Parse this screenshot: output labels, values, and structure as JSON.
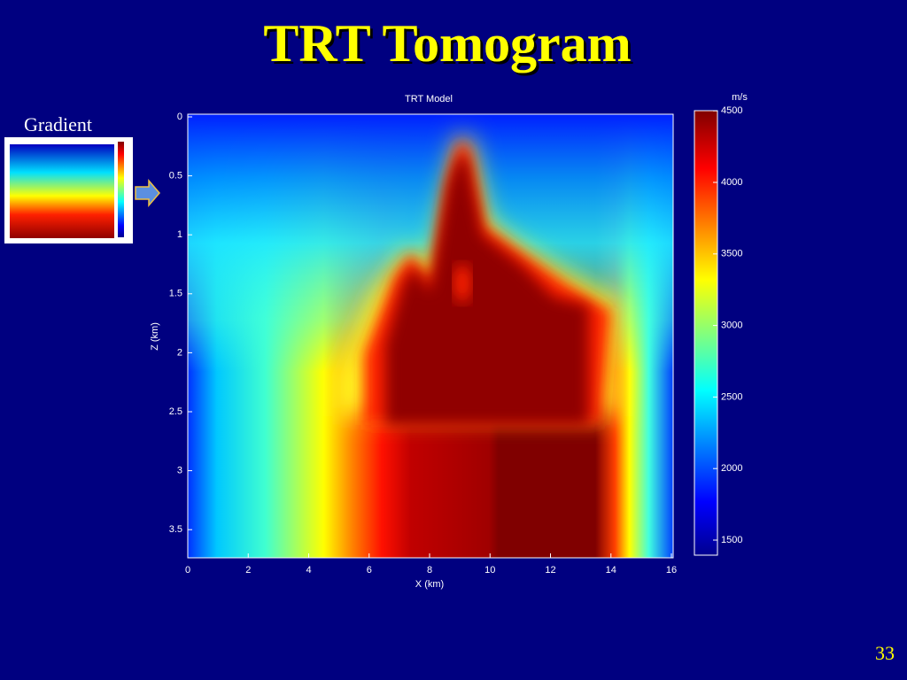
{
  "slide": {
    "title": "TRT Tomogram",
    "page_number": "33"
  },
  "thumbnail": {
    "label": "Gradient"
  },
  "plot": {
    "title": "TRT Model",
    "x_label": "X (km)",
    "y_label": "Z (km)",
    "x_ticks": [
      "0",
      "2",
      "4",
      "6",
      "8",
      "10",
      "12",
      "14",
      "16"
    ],
    "y_ticks": [
      "0",
      "0.5",
      "1",
      "1.5",
      "2",
      "2.5",
      "3",
      "3.5"
    ]
  },
  "colorbar": {
    "unit": "m/s",
    "ticks": [
      "1500",
      "2000",
      "2500",
      "3000",
      "3500",
      "4000",
      "4500"
    ]
  }
}
